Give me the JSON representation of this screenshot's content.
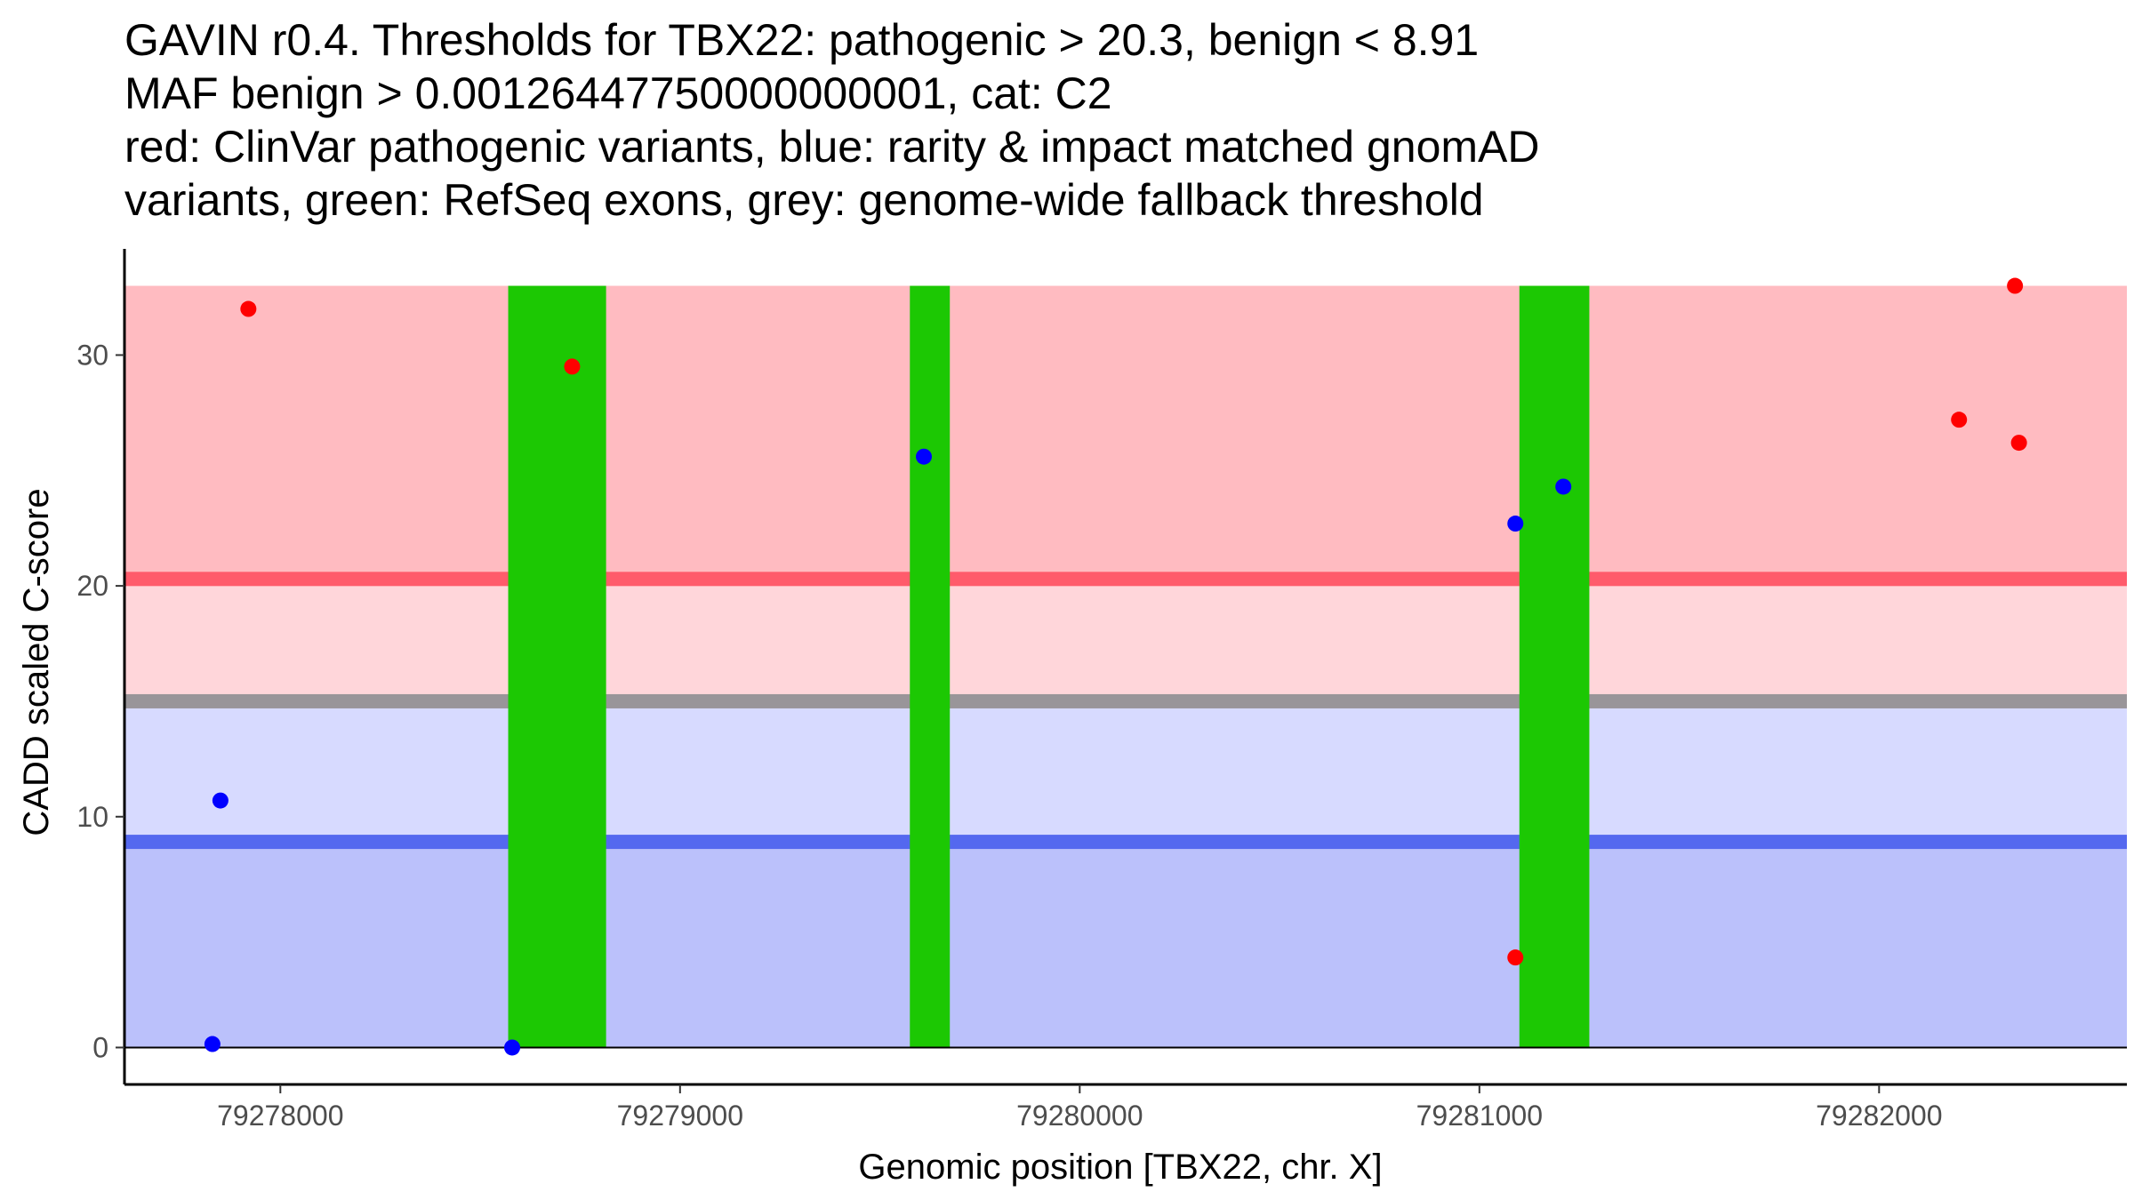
{
  "chart_data": {
    "type": "scatter",
    "title_lines": [
      "GAVIN r0.4. Thresholds for TBX22: pathogenic > 20.3, benign < 8.91",
      "MAF benign > 0.00126447750000000001, cat: C2",
      "red: ClinVar pathogenic variants, blue: rarity & impact matched gnomAD",
      "variants, green: RefSeq exons, grey: genome-wide fallback threshold"
    ],
    "xlabel": "Genomic position [TBX22, chr. X]",
    "ylabel": "CADD scaled C-score",
    "xlim": [
      79277610,
      79282620
    ],
    "ylim": [
      -1.6,
      34.6
    ],
    "x_ticks": [
      {
        "value": 79278000,
        "label": "79278000"
      },
      {
        "value": 79279000,
        "label": "79279000"
      },
      {
        "value": 79280000,
        "label": "79280000"
      },
      {
        "value": 79281000,
        "label": "79281000"
      },
      {
        "value": 79282000,
        "label": "79282000"
      }
    ],
    "y_ticks": [
      {
        "value": 0,
        "label": "0"
      },
      {
        "value": 10,
        "label": "10"
      },
      {
        "value": 20,
        "label": "20"
      },
      {
        "value": 30,
        "label": "30"
      }
    ],
    "thresholds": {
      "pathogenic": 20.3,
      "benign": 8.91,
      "genome_wide_fallback": 15.0,
      "score_max": 33.0
    },
    "bands": [
      {
        "name": "pathogenic-zone",
        "y0": 20.3,
        "y1": 33.0,
        "color": "#ffbbc1"
      },
      {
        "name": "pathogenic-fallback-zone",
        "y0": 15.0,
        "y1": 20.3,
        "color": "#ffd6da"
      },
      {
        "name": "benign-fallback-zone",
        "y0": 8.91,
        "y1": 15.0,
        "color": "#d7daff"
      },
      {
        "name": "benign-zone",
        "y0": 0,
        "y1": 8.91,
        "color": "#bbc1fb"
      }
    ],
    "threshold_lines": [
      {
        "name": "pathogenic-threshold-line",
        "y": 20.3,
        "color": "#ff5b6b"
      },
      {
        "name": "fallback-threshold-line",
        "y": 15.0,
        "color": "#999599"
      },
      {
        "name": "benign-threshold-line",
        "y": 8.91,
        "color": "#5468ef"
      }
    ],
    "exons": [
      {
        "start": 79278570,
        "end": 79278815
      },
      {
        "start": 79279575,
        "end": 79279675
      },
      {
        "start": 79281100,
        "end": 79281275
      }
    ],
    "series": [
      {
        "name": "ClinVar pathogenic variants",
        "color": "#ff0000",
        "points": [
          {
            "x": 79277920,
            "y": 32.0
          },
          {
            "x": 79278730,
            "y": 29.5
          },
          {
            "x": 79281090,
            "y": 3.9
          },
          {
            "x": 79282200,
            "y": 27.2
          },
          {
            "x": 79282340,
            "y": 33.0
          },
          {
            "x": 79282350,
            "y": 26.2
          }
        ]
      },
      {
        "name": "rarity & impact matched gnomAD variants",
        "color": "#0000ff",
        "points": [
          {
            "x": 79277830,
            "y": 0.15
          },
          {
            "x": 79277850,
            "y": 10.7
          },
          {
            "x": 79278580,
            "y": 0.0
          },
          {
            "x": 79279610,
            "y": 25.6
          },
          {
            "x": 79281090,
            "y": 22.7
          },
          {
            "x": 79281210,
            "y": 24.3
          }
        ]
      }
    ],
    "exon_color": "#1cc803"
  }
}
